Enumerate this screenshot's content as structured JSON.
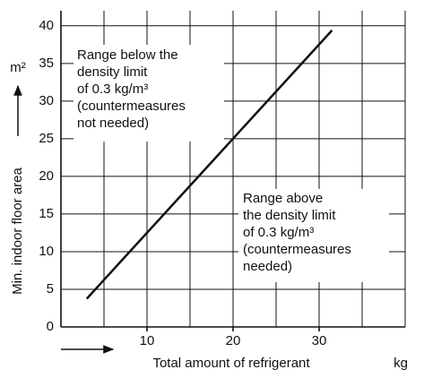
{
  "chart_data": {
    "type": "line",
    "x": [
      3,
      31.5
    ],
    "values": [
      3.75,
      39.4
    ],
    "color": "#111111",
    "xlim": [
      0,
      40
    ],
    "ylim": [
      0,
      42
    ],
    "xticks": [
      10,
      20,
      30
    ],
    "yticks": [
      0,
      5,
      10,
      15,
      20,
      25,
      30,
      35,
      40
    ],
    "grid": true,
    "xlabel": "Total amount of refrigerant",
    "xunit": "kg",
    "ylabel": "Min. indoor floor area",
    "yunit": "m²",
    "annotations": [
      [
        "Range below the",
        "density limit",
        "of 0.3 kg/m³",
        "(countermeasures",
        "not needed)"
      ],
      [
        "Range above",
        "the density limit",
        "of 0.3 kg/m³",
        "(countermeasures",
        "needed)"
      ]
    ]
  }
}
